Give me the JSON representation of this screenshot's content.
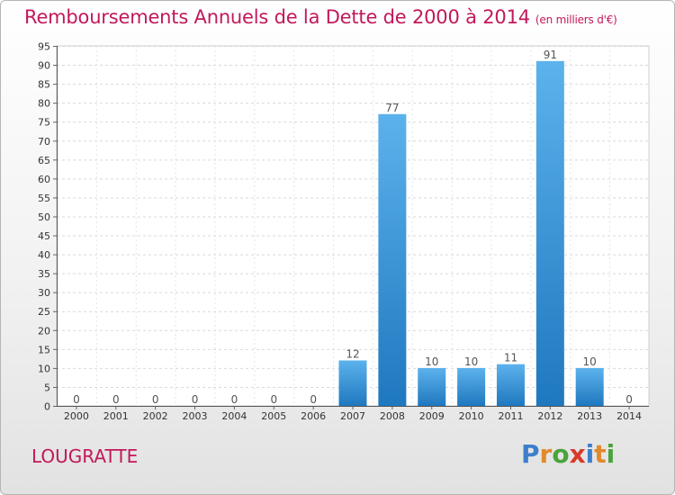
{
  "chart_data": {
    "type": "bar",
    "title": "Remboursements Annuels de la Dette de 2000 à 2014",
    "subtitle": "(en milliers d'€)",
    "xlabel": "",
    "ylabel": "",
    "categories": [
      "2000",
      "2001",
      "2002",
      "2003",
      "2004",
      "2005",
      "2006",
      "2007",
      "2008",
      "2009",
      "2010",
      "2011",
      "2012",
      "2013",
      "2014"
    ],
    "values": [
      0,
      0,
      0,
      0,
      0,
      0,
      0,
      12,
      77,
      10,
      10,
      11,
      91,
      10,
      0
    ],
    "data_labels": [
      "0",
      "0",
      "0",
      "0",
      "0",
      "0",
      "0",
      "12",
      "77",
      "10",
      "10",
      "11",
      "91",
      "10",
      "0"
    ],
    "ylim": [
      0,
      95
    ],
    "yticks": [
      0,
      5,
      10,
      15,
      20,
      25,
      30,
      35,
      40,
      45,
      50,
      55,
      60,
      65,
      70,
      75,
      80,
      85,
      90,
      95
    ],
    "grid": true,
    "colors": {
      "bar_top": "#5cb2ec",
      "bar_bottom": "#1f78bf",
      "title": "#c2185b"
    }
  },
  "place_name": "LOUGRATTE",
  "logo": {
    "letters": [
      "P",
      "r",
      "o",
      "x",
      "i",
      "t",
      "i"
    ],
    "colors": [
      "#3d7fcc",
      "#e2892b",
      "#4aa33b",
      "#d83a2a",
      "#3d7fcc",
      "#e2892b",
      "#4aa33b"
    ]
  }
}
